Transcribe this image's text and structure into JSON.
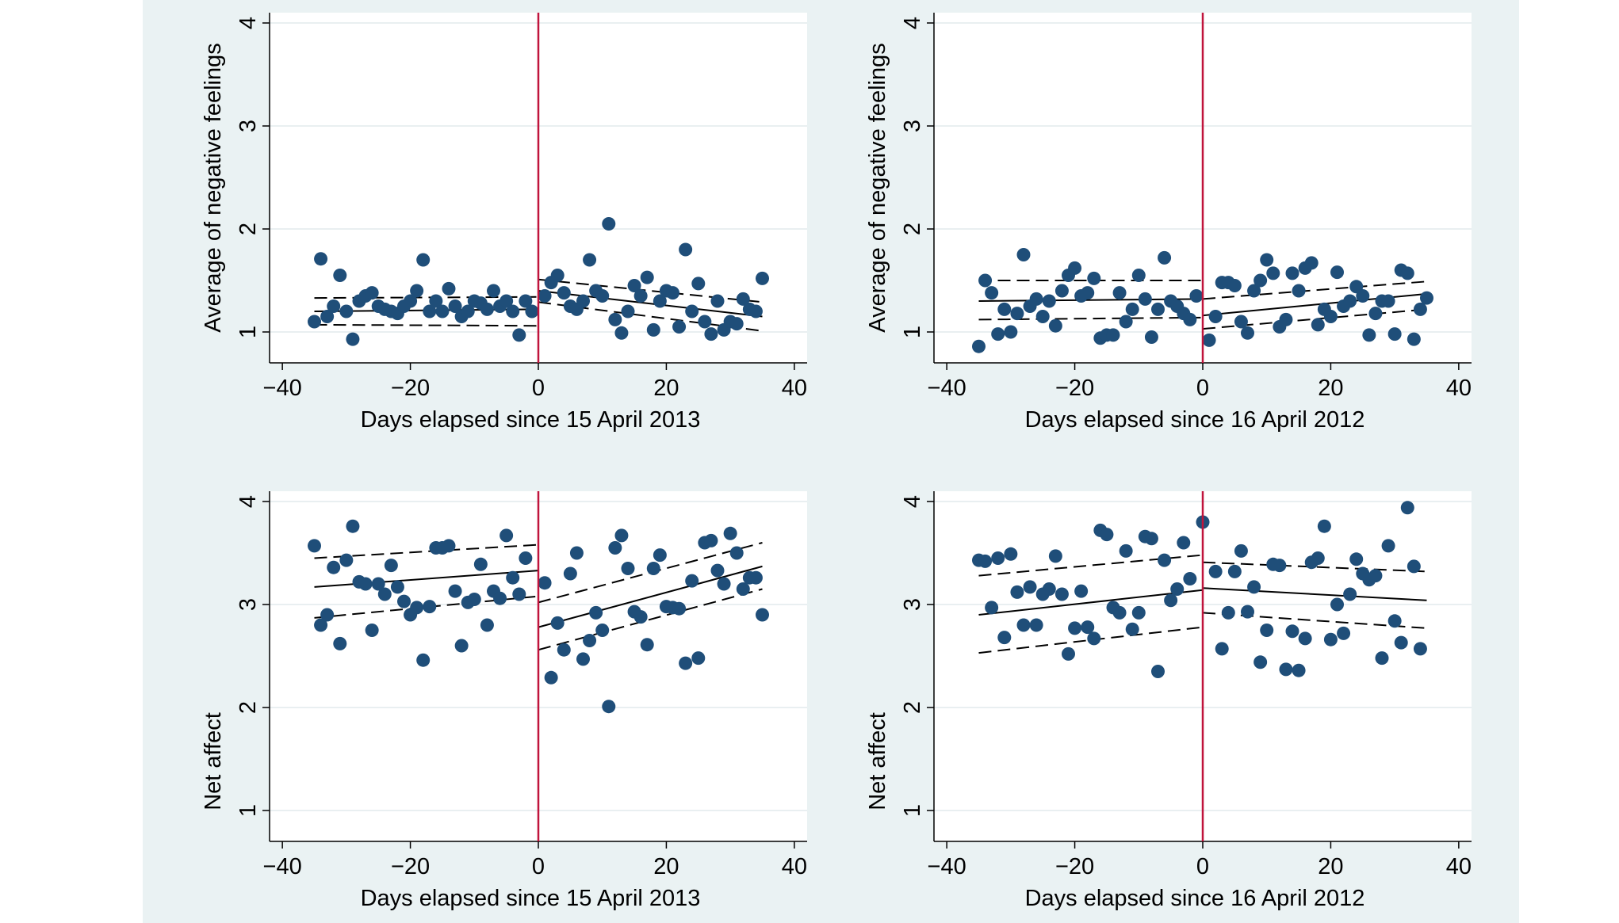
{
  "figure": {
    "background": "#eaf2f3",
    "plot_background": "#ffffff",
    "gridline_color": "#e9eff1",
    "point_color": "#1f4e79",
    "cutoff_color": "#c0143c"
  },
  "chart_data": [
    {
      "type": "scatter",
      "title": "",
      "xlabel": "Days elapsed since 15 April 2013",
      "ylabel": "Average of negative feelings",
      "xlim": [
        -42,
        42
      ],
      "ylim": [
        0.7,
        4.1
      ],
      "xticks": [
        -40,
        -20,
        0,
        20,
        40
      ],
      "xtick_labels": [
        "−40",
        "−20",
        "0",
        "20",
        "40"
      ],
      "yticks": [
        1,
        2,
        3,
        4
      ],
      "ytick_labels": [
        "1",
        "2",
        "3",
        "4"
      ],
      "grid": true,
      "cutoff": 0,
      "points": [
        [
          -35,
          1.1
        ],
        [
          -34,
          1.71
        ],
        [
          -33,
          1.15
        ],
        [
          -32,
          1.25
        ],
        [
          -31,
          1.55
        ],
        [
          -30,
          1.2
        ],
        [
          -29,
          0.93
        ],
        [
          -28,
          1.3
        ],
        [
          -27,
          1.35
        ],
        [
          -26,
          1.38
        ],
        [
          -25,
          1.25
        ],
        [
          -24,
          1.22
        ],
        [
          -23,
          1.2
        ],
        [
          -22,
          1.18
        ],
        [
          -21,
          1.25
        ],
        [
          -20,
          1.3
        ],
        [
          -19,
          1.4
        ],
        [
          -18,
          1.7
        ],
        [
          -17,
          1.2
        ],
        [
          -16,
          1.3
        ],
        [
          -15,
          1.2
        ],
        [
          -14,
          1.42
        ],
        [
          -13,
          1.25
        ],
        [
          -12,
          1.15
        ],
        [
          -11,
          1.2
        ],
        [
          -10,
          1.3
        ],
        [
          -9,
          1.28
        ],
        [
          -8,
          1.22
        ],
        [
          -7,
          1.4
        ],
        [
          -6,
          1.25
        ],
        [
          -5,
          1.3
        ],
        [
          -4,
          1.2
        ],
        [
          -3,
          0.97
        ],
        [
          -2,
          1.3
        ],
        [
          -1,
          1.2
        ],
        [
          1,
          1.35
        ],
        [
          2,
          1.48
        ],
        [
          3,
          1.55
        ],
        [
          4,
          1.38
        ],
        [
          5,
          1.25
        ],
        [
          6,
          1.22
        ],
        [
          7,
          1.3
        ],
        [
          8,
          1.7
        ],
        [
          9,
          1.4
        ],
        [
          10,
          1.35
        ],
        [
          11,
          2.05
        ],
        [
          12,
          1.12
        ],
        [
          13,
          0.99
        ],
        [
          14,
          1.2
        ],
        [
          15,
          1.45
        ],
        [
          16,
          1.35
        ],
        [
          17,
          1.53
        ],
        [
          18,
          1.02
        ],
        [
          19,
          1.3
        ],
        [
          20,
          1.4
        ],
        [
          21,
          1.38
        ],
        [
          22,
          1.05
        ],
        [
          23,
          1.8
        ],
        [
          24,
          1.2
        ],
        [
          25,
          1.47
        ],
        [
          26,
          1.1
        ],
        [
          27,
          0.98
        ],
        [
          28,
          1.3
        ],
        [
          29,
          1.02
        ],
        [
          30,
          1.1
        ],
        [
          31,
          1.08
        ],
        [
          32,
          1.32
        ],
        [
          33,
          1.22
        ],
        [
          34,
          1.2
        ],
        [
          35,
          1.52
        ]
      ],
      "fit_left": {
        "x": [
          -35,
          0
        ],
        "fit": [
          1.2,
          1.22
        ],
        "ci_low": [
          1.07,
          1.06
        ],
        "ci_high": [
          1.33,
          1.34
        ]
      },
      "fit_right": {
        "x": [
          0,
          35
        ],
        "fit": [
          1.4,
          1.15
        ],
        "ci_low": [
          1.29,
          1.01
        ],
        "ci_high": [
          1.51,
          1.29
        ]
      }
    },
    {
      "type": "scatter",
      "title": "",
      "xlabel": "Days elapsed since 16 April 2012",
      "ylabel": "Average of negative feelings",
      "xlim": [
        -42,
        42
      ],
      "ylim": [
        0.7,
        4.1
      ],
      "xticks": [
        -40,
        -20,
        0,
        20,
        40
      ],
      "xtick_labels": [
        "−40",
        "−20",
        "0",
        "20",
        "40"
      ],
      "yticks": [
        1,
        2,
        3,
        4
      ],
      "ytick_labels": [
        "1",
        "2",
        "3",
        "4"
      ],
      "grid": true,
      "cutoff": 0,
      "points": [
        [
          -35,
          0.86
        ],
        [
          -34,
          1.5
        ],
        [
          -33,
          1.38
        ],
        [
          -32,
          0.98
        ],
        [
          -31,
          1.22
        ],
        [
          -30,
          1.0
        ],
        [
          -29,
          1.18
        ],
        [
          -28,
          1.75
        ],
        [
          -27,
          1.25
        ],
        [
          -26,
          1.32
        ],
        [
          -25,
          1.15
        ],
        [
          -24,
          1.3
        ],
        [
          -23,
          1.06
        ],
        [
          -22,
          1.4
        ],
        [
          -21,
          1.55
        ],
        [
          -20,
          1.62
        ],
        [
          -19,
          1.35
        ],
        [
          -18,
          1.38
        ],
        [
          -17,
          1.52
        ],
        [
          -16,
          0.94
        ],
        [
          -15,
          0.97
        ],
        [
          -14,
          0.97
        ],
        [
          -13,
          1.38
        ],
        [
          -12,
          1.1
        ],
        [
          -11,
          1.22
        ],
        [
          -10,
          1.55
        ],
        [
          -9,
          1.32
        ],
        [
          -8,
          0.95
        ],
        [
          -7,
          1.22
        ],
        [
          -6,
          1.72
        ],
        [
          -5,
          1.3
        ],
        [
          -4,
          1.25
        ],
        [
          -3,
          1.18
        ],
        [
          -2,
          1.12
        ],
        [
          -1,
          1.35
        ],
        [
          1,
          0.92
        ],
        [
          2,
          1.15
        ],
        [
          3,
          1.48
        ],
        [
          4,
          1.48
        ],
        [
          5,
          1.45
        ],
        [
          6,
          1.1
        ],
        [
          7,
          0.99
        ],
        [
          8,
          1.4
        ],
        [
          9,
          1.5
        ],
        [
          10,
          1.7
        ],
        [
          11,
          1.57
        ],
        [
          12,
          1.05
        ],
        [
          13,
          1.12
        ],
        [
          14,
          1.57
        ],
        [
          15,
          1.4
        ],
        [
          16,
          1.62
        ],
        [
          17,
          1.67
        ],
        [
          18,
          1.07
        ],
        [
          19,
          1.22
        ],
        [
          20,
          1.15
        ],
        [
          21,
          1.58
        ],
        [
          22,
          1.25
        ],
        [
          23,
          1.3
        ],
        [
          24,
          1.44
        ],
        [
          25,
          1.35
        ],
        [
          26,
          0.97
        ],
        [
          27,
          1.18
        ],
        [
          28,
          1.3
        ],
        [
          29,
          1.3
        ],
        [
          30,
          0.98
        ],
        [
          31,
          1.6
        ],
        [
          32,
          1.57
        ],
        [
          33,
          0.93
        ],
        [
          34,
          1.22
        ],
        [
          35,
          1.33
        ]
      ],
      "fit_left": {
        "x": [
          -35,
          0
        ],
        "fit": [
          1.3,
          1.32
        ],
        "ci_low": [
          1.12,
          1.14
        ],
        "ci_high": [
          1.5,
          1.5
        ]
      },
      "fit_right": {
        "x": [
          0,
          35
        ],
        "fit": [
          1.16,
          1.37
        ],
        "ci_low": [
          1.03,
          1.22
        ],
        "ci_high": [
          1.32,
          1.49
        ]
      }
    },
    {
      "type": "scatter",
      "title": "",
      "xlabel": "Days elapsed since 15 April 2013",
      "ylabel": "Net affect",
      "xlim": [
        -42,
        42
      ],
      "ylim": [
        0.7,
        4.1
      ],
      "xticks": [
        -40,
        -20,
        0,
        20,
        40
      ],
      "xtick_labels": [
        "−40",
        "−20",
        "0",
        "20",
        "40"
      ],
      "yticks": [
        1,
        2,
        3,
        4
      ],
      "ytick_labels": [
        "1",
        "2",
        "3",
        "4"
      ],
      "grid": true,
      "cutoff": 0,
      "points": [
        [
          -35,
          3.57
        ],
        [
          -34,
          2.8
        ],
        [
          -33,
          2.9
        ],
        [
          -32,
          3.36
        ],
        [
          -31,
          2.62
        ],
        [
          -30,
          3.43
        ],
        [
          -29,
          3.76
        ],
        [
          -28,
          3.22
        ],
        [
          -27,
          3.2
        ],
        [
          -26,
          2.75
        ],
        [
          -25,
          3.2
        ],
        [
          -24,
          3.1
        ],
        [
          -23,
          3.38
        ],
        [
          -22,
          3.17
        ],
        [
          -21,
          3.03
        ],
        [
          -20,
          2.9
        ],
        [
          -19,
          2.97
        ],
        [
          -18,
          2.46
        ],
        [
          -17,
          2.98
        ],
        [
          -16,
          3.55
        ],
        [
          -15,
          3.55
        ],
        [
          -14,
          3.57
        ],
        [
          -13,
          3.13
        ],
        [
          -12,
          2.6
        ],
        [
          -11,
          3.02
        ],
        [
          -10,
          3.05
        ],
        [
          -9,
          3.39
        ],
        [
          -8,
          2.8
        ],
        [
          -7,
          3.13
        ],
        [
          -6,
          3.06
        ],
        [
          -5,
          3.67
        ],
        [
          -4,
          3.26
        ],
        [
          -3,
          3.1
        ],
        [
          -2,
          3.45
        ],
        [
          1,
          3.21
        ],
        [
          2,
          2.29
        ],
        [
          3,
          2.82
        ],
        [
          4,
          2.56
        ],
        [
          5,
          3.3
        ],
        [
          6,
          3.5
        ],
        [
          7,
          2.47
        ],
        [
          8,
          2.65
        ],
        [
          9,
          2.92
        ],
        [
          10,
          2.75
        ],
        [
          11,
          2.01
        ],
        [
          12,
          3.55
        ],
        [
          13,
          3.67
        ],
        [
          14,
          3.35
        ],
        [
          15,
          2.93
        ],
        [
          16,
          2.88
        ],
        [
          17,
          2.61
        ],
        [
          18,
          3.35
        ],
        [
          19,
          3.48
        ],
        [
          20,
          2.98
        ],
        [
          21,
          2.97
        ],
        [
          22,
          2.96
        ],
        [
          23,
          2.43
        ],
        [
          24,
          3.23
        ],
        [
          25,
          2.48
        ],
        [
          26,
          3.6
        ],
        [
          27,
          3.62
        ],
        [
          28,
          3.33
        ],
        [
          29,
          3.2
        ],
        [
          30,
          3.69
        ],
        [
          31,
          3.5
        ],
        [
          32,
          3.15
        ],
        [
          33,
          3.26
        ],
        [
          34,
          3.26
        ],
        [
          35,
          2.9
        ]
      ],
      "fit_left": {
        "x": [
          -35,
          0
        ],
        "fit": [
          3.17,
          3.33
        ],
        "ci_low": [
          2.87,
          3.08
        ],
        "ci_high": [
          3.45,
          3.58
        ]
      },
      "fit_right": {
        "x": [
          0,
          35
        ],
        "fit": [
          2.78,
          3.37
        ],
        "ci_low": [
          2.56,
          3.15
        ],
        "ci_high": [
          3.02,
          3.6
        ]
      }
    },
    {
      "type": "scatter",
      "title": "",
      "xlabel": "Days elapsed since 16 April 2012",
      "ylabel": "Net affect",
      "xlim": [
        -42,
        42
      ],
      "ylim": [
        0.7,
        4.1
      ],
      "xticks": [
        -40,
        -20,
        0,
        20,
        40
      ],
      "xtick_labels": [
        "−40",
        "−20",
        "0",
        "20",
        "40"
      ],
      "yticks": [
        1,
        2,
        3,
        4
      ],
      "ytick_labels": [
        "1",
        "2",
        "3",
        "4"
      ],
      "grid": true,
      "cutoff": 0,
      "points": [
        [
          -35,
          3.43
        ],
        [
          -34,
          3.42
        ],
        [
          -33,
          2.97
        ],
        [
          -32,
          3.45
        ],
        [
          -31,
          2.68
        ],
        [
          -30,
          3.49
        ],
        [
          -29,
          3.12
        ],
        [
          -28,
          2.8
        ],
        [
          -27,
          3.17
        ],
        [
          -26,
          2.8
        ],
        [
          -25,
          3.1
        ],
        [
          -24,
          3.15
        ],
        [
          -23,
          3.47
        ],
        [
          -22,
          3.1
        ],
        [
          -21,
          2.52
        ],
        [
          -20,
          2.77
        ],
        [
          -19,
          3.13
        ],
        [
          -18,
          2.78
        ],
        [
          -17,
          2.67
        ],
        [
          -16,
          3.72
        ],
        [
          -15,
          3.68
        ],
        [
          -14,
          2.97
        ],
        [
          -13,
          2.92
        ],
        [
          -12,
          3.52
        ],
        [
          -11,
          2.76
        ],
        [
          -10,
          2.92
        ],
        [
          -9,
          3.66
        ],
        [
          -8,
          3.64
        ],
        [
          -7,
          2.35
        ],
        [
          -6,
          3.43
        ],
        [
          -5,
          3.04
        ],
        [
          -4,
          3.15
        ],
        [
          -3,
          3.6
        ],
        [
          -2,
          3.25
        ],
        [
          0,
          3.8
        ],
        [
          2,
          3.32
        ],
        [
          3,
          2.57
        ],
        [
          4,
          2.92
        ],
        [
          5,
          3.32
        ],
        [
          6,
          3.52
        ],
        [
          7,
          2.93
        ],
        [
          8,
          3.17
        ],
        [
          9,
          2.44
        ],
        [
          10,
          2.75
        ],
        [
          11,
          3.39
        ],
        [
          12,
          3.38
        ],
        [
          13,
          2.37
        ],
        [
          14,
          2.74
        ],
        [
          15,
          2.36
        ],
        [
          16,
          2.67
        ],
        [
          17,
          3.41
        ],
        [
          18,
          3.45
        ],
        [
          19,
          3.76
        ],
        [
          20,
          2.66
        ],
        [
          21,
          3.0
        ],
        [
          22,
          2.72
        ],
        [
          23,
          3.1
        ],
        [
          24,
          3.44
        ],
        [
          25,
          3.3
        ],
        [
          26,
          3.24
        ],
        [
          27,
          3.28
        ],
        [
          28,
          2.48
        ],
        [
          29,
          3.57
        ],
        [
          30,
          2.84
        ],
        [
          31,
          2.63
        ],
        [
          32,
          3.94
        ],
        [
          33,
          3.37
        ],
        [
          34,
          2.57
        ]
      ],
      "fit_left": {
        "x": [
          -35,
          0
        ],
        "fit": [
          2.9,
          3.14
        ],
        "ci_low": [
          2.53,
          2.78
        ],
        "ci_high": [
          3.28,
          3.48
        ]
      },
      "fit_right": {
        "x": [
          0,
          35
        ],
        "fit": [
          3.16,
          3.04
        ],
        "ci_low": [
          2.92,
          2.77
        ],
        "ci_high": [
          3.41,
          3.32
        ]
      }
    }
  ]
}
